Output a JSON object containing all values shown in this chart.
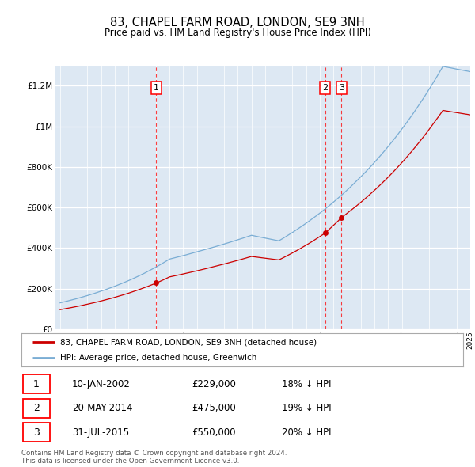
{
  "title": "83, CHAPEL FARM ROAD, LONDON, SE9 3NH",
  "subtitle": "Price paid vs. HM Land Registry's House Price Index (HPI)",
  "property_label": "83, CHAPEL FARM ROAD, LONDON, SE9 3NH (detached house)",
  "hpi_label": "HPI: Average price, detached house, Greenwich",
  "property_color": "#cc0000",
  "hpi_color": "#7aadd4",
  "background_color": "#dde8f3",
  "ylim": [
    0,
    1300000
  ],
  "yticks": [
    0,
    200000,
    400000,
    600000,
    800000,
    1000000,
    1200000
  ],
  "ytick_labels": [
    "£0",
    "£200K",
    "£400K",
    "£600K",
    "£800K",
    "£1M",
    "£1.2M"
  ],
  "sales": [
    {
      "date": "2002-01-10",
      "price": 229000,
      "label": "1",
      "hpi_discount": "18% ↓ HPI"
    },
    {
      "date": "2014-05-20",
      "price": 475000,
      "label": "2",
      "hpi_discount": "19% ↓ HPI"
    },
    {
      "date": "2015-07-31",
      "price": 550000,
      "label": "3",
      "hpi_discount": "20% ↓ HPI"
    }
  ],
  "footnote": "Contains HM Land Registry data © Crown copyright and database right 2024.\nThis data is licensed under the Open Government Licence v3.0.",
  "xstart_year": 1995,
  "xend_year": 2025,
  "sale_year_decimals": [
    2002.027,
    2014.382,
    2015.58
  ]
}
